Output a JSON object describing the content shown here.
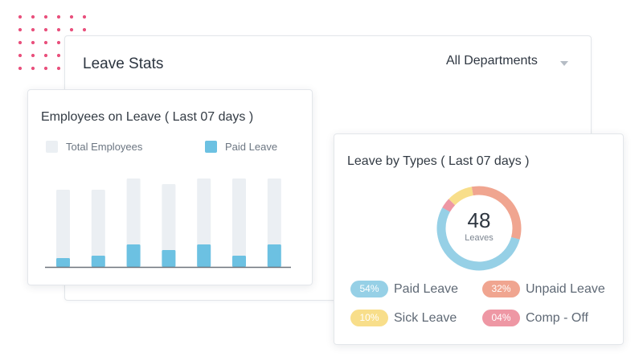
{
  "leave_stats": {
    "title": "Leave Stats",
    "department_filter": "All Departments"
  },
  "employees_on_leave": {
    "title": "Employees on Leave ( Last 07 days )",
    "legend": {
      "total": "Total Employees",
      "paid": "Paid Leave"
    }
  },
  "leave_by_types": {
    "title": "Leave by Types ( Last 07 days )",
    "total": "48",
    "total_label": "Leaves",
    "types": [
      {
        "percent": "54%",
        "label": "Paid Leave",
        "color": "#96d0e6"
      },
      {
        "percent": "32%",
        "label": "Unpaid Leave",
        "color": "#f0a590"
      },
      {
        "percent": "10%",
        "label": "Sick Leave",
        "color": "#f8de8a"
      },
      {
        "percent": "04%",
        "label": "Comp - Off",
        "color": "#ee97a4"
      }
    ]
  },
  "colors": {
    "total_bar": "#ebeff3",
    "paid_bar": "#6cc1e2",
    "baseline": "#6d737b",
    "dots": "#e9527e"
  },
  "chart_data": {
    "type": "bar",
    "categories": [
      "",
      "",
      "",
      "",
      "",
      "",
      ""
    ],
    "series": [
      {
        "name": "Total Employees",
        "values": [
          96,
          96,
          110,
          103,
          110,
          110,
          110
        ]
      },
      {
        "name": "Paid Leave",
        "values": [
          11,
          14,
          28,
          21,
          28,
          14,
          28
        ]
      }
    ],
    "ylim": [
      0,
      110
    ],
    "grid": false,
    "legend": "top"
  }
}
